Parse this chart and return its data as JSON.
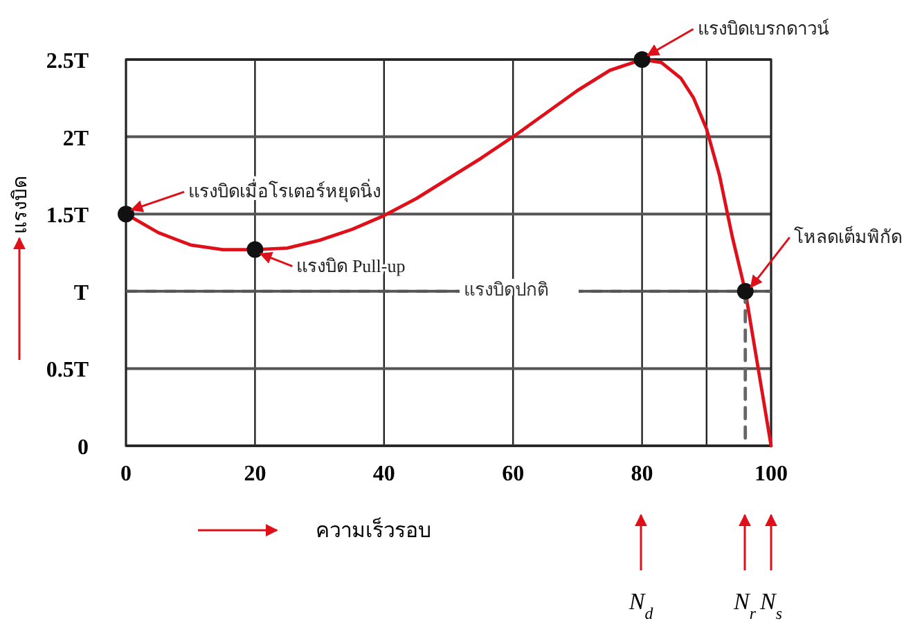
{
  "chart_data": {
    "type": "line",
    "xlabel": "ความเร็วรอบ",
    "ylabel": "แรงบิด",
    "xlim": [
      0,
      100
    ],
    "ylim": [
      0,
      2.5
    ],
    "xticks": [
      0,
      20,
      40,
      60,
      80,
      {
        "value": 90,
        "label": null
      },
      100
    ],
    "yticks": [
      {
        "value": 0,
        "label": "0"
      },
      {
        "value": 0.5,
        "label": "0.5T"
      },
      {
        "value": 1,
        "label": "T"
      },
      {
        "value": 1.5,
        "label": "1.5T"
      },
      {
        "value": 2,
        "label": "2T"
      },
      {
        "value": 2.5,
        "label": "2.5T"
      }
    ],
    "grid": true,
    "series": [
      {
        "color": "#e0101a",
        "x": [
          0,
          5,
          10,
          15,
          20,
          25,
          30,
          35,
          40,
          45,
          50,
          55,
          60,
          65,
          70,
          75,
          80,
          83,
          86,
          88,
          90,
          92,
          94,
          96,
          98,
          100
        ],
        "values": [
          1.5,
          1.38,
          1.3,
          1.27,
          1.27,
          1.28,
          1.33,
          1.4,
          1.49,
          1.6,
          1.73,
          1.86,
          2.0,
          2.15,
          2.3,
          2.43,
          2.5,
          2.48,
          2.38,
          2.25,
          2.05,
          1.75,
          1.35,
          1.0,
          0.5,
          0
        ]
      },
      {
        "color": "#666666",
        "line_style": "dashed",
        "x": [
          96,
          96
        ],
        "values": [
          1.0,
          0
        ]
      },
      {
        "type": "scatter",
        "color": "#111111",
        "marker": "circle",
        "x": [
          0,
          20,
          80,
          96
        ],
        "values": [
          1.5,
          1.27,
          2.5,
          1.0
        ]
      }
    ],
    "ref_lines": [
      {
        "axis": "y",
        "value": 1,
        "label": "แรงบิดปกติ",
        "color": "#555555",
        "line_style": "dashed"
      }
    ],
    "annotations": [
      {
        "text": "แรงบิดเมื่อโรเตอร์หยุดนิ่ง",
        "x": 0,
        "y": 1.5
      },
      {
        "text": "แรงบิด Pull-up",
        "x": 20,
        "y": 1.27
      },
      {
        "text": "แรงบิดเบรกดาวน์",
        "x": 80,
        "y": 2.5
      },
      {
        "text": "โหลดเต็มพิกัด",
        "x": 96,
        "y": 1.0
      },
      "N$_{d}$",
      "N$_{r}$",
      "N$_{s}$"
    ]
  }
}
